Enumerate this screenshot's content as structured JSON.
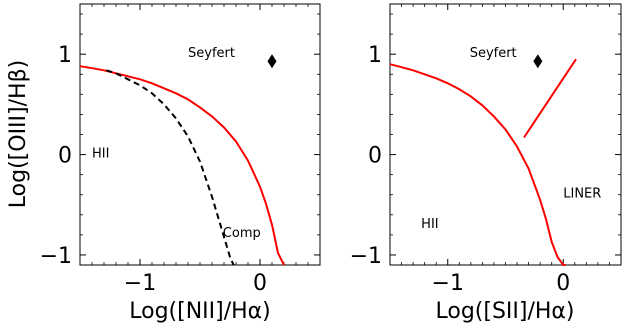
{
  "chart_data": [
    {
      "type": "line",
      "xlabel": "Log([NII]/Hα)",
      "ylabel": "Log([OIII]/Hβ)",
      "xlim": [
        -1.5,
        0.5
      ],
      "ylim": [
        -1.1,
        1.5
      ],
      "xticks": [
        -1,
        0
      ],
      "xtick_labels": [
        "−1",
        "0"
      ],
      "yticks": [
        -1,
        0,
        1
      ],
      "ytick_labels": [
        "−1",
        "0",
        "1"
      ],
      "curves": [
        {
          "style": "solid",
          "color": "#ff0000",
          "x": [
            -1.5,
            -1.4,
            -1.3,
            -1.2,
            -1.1,
            -1.0,
            -0.9,
            -0.8,
            -0.7,
            -0.6,
            -0.5,
            -0.4,
            -0.3,
            -0.2,
            -0.1,
            0.0,
            0.05,
            0.1,
            0.15,
            0.2
          ],
          "y": [
            0.88,
            0.86,
            0.84,
            0.81,
            0.78,
            0.75,
            0.71,
            0.66,
            0.61,
            0.55,
            0.47,
            0.38,
            0.27,
            0.13,
            -0.06,
            -0.32,
            -0.49,
            -0.7,
            -0.98,
            -1.1
          ]
        },
        {
          "style": "dashed",
          "color": "#000000",
          "x": [
            -1.28,
            -1.2,
            -1.1,
            -1.0,
            -0.9,
            -0.8,
            -0.7,
            -0.6,
            -0.5,
            -0.4,
            -0.35,
            -0.3,
            -0.25,
            -0.22
          ],
          "y": [
            0.84,
            0.81,
            0.75,
            0.69,
            0.61,
            0.5,
            0.36,
            0.18,
            -0.07,
            -0.42,
            -0.62,
            -0.82,
            -1.02,
            -1.1
          ]
        }
      ],
      "points": [
        {
          "x": 0.1,
          "y": 0.93,
          "marker": "diamond",
          "color": "#000000"
        }
      ],
      "labels": [
        {
          "text": "Seyfert",
          "x": -0.6,
          "y": 1.02
        },
        {
          "text": "HII",
          "x": -1.4,
          "y": 0.02
        },
        {
          "text": "Comp",
          "x": -0.31,
          "y": -0.77
        }
      ]
    },
    {
      "type": "line",
      "xlabel": "Log([SII]/Hα)",
      "ylabel": "",
      "xlim": [
        -1.5,
        0.5
      ],
      "ylim": [
        -1.1,
        1.5
      ],
      "xticks": [
        -1,
        0
      ],
      "xtick_labels": [
        "−1",
        "0"
      ],
      "yticks": [
        -1,
        0,
        1
      ],
      "ytick_labels": [
        "−1",
        "0",
        "1"
      ],
      "curves": [
        {
          "style": "solid",
          "color": "#ff0000",
          "x": [
            -1.5,
            -1.4,
            -1.3,
            -1.2,
            -1.1,
            -1.0,
            -0.9,
            -0.8,
            -0.7,
            -0.6,
            -0.5,
            -0.4,
            -0.3,
            -0.2,
            -0.15,
            -0.1,
            -0.05,
            0.0,
            0.02
          ],
          "y": [
            0.9,
            0.87,
            0.84,
            0.8,
            0.76,
            0.71,
            0.65,
            0.58,
            0.49,
            0.38,
            0.25,
            0.08,
            -0.14,
            -0.45,
            -0.64,
            -0.87,
            -1.02,
            -1.1,
            -1.1
          ]
        },
        {
          "style": "solid",
          "color": "#ff0000",
          "x": [
            -0.34,
            0.11
          ],
          "y": [
            0.17,
            0.95
          ]
        }
      ],
      "points": [
        {
          "x": -0.22,
          "y": 0.93,
          "marker": "diamond",
          "color": "#000000"
        }
      ],
      "labels": [
        {
          "text": "Seyfert",
          "x": -0.81,
          "y": 1.02
        },
        {
          "text": "LINER",
          "x": 0.0,
          "y": -0.38
        },
        {
          "text": "HII",
          "x": -1.23,
          "y": -0.68
        }
      ]
    }
  ]
}
